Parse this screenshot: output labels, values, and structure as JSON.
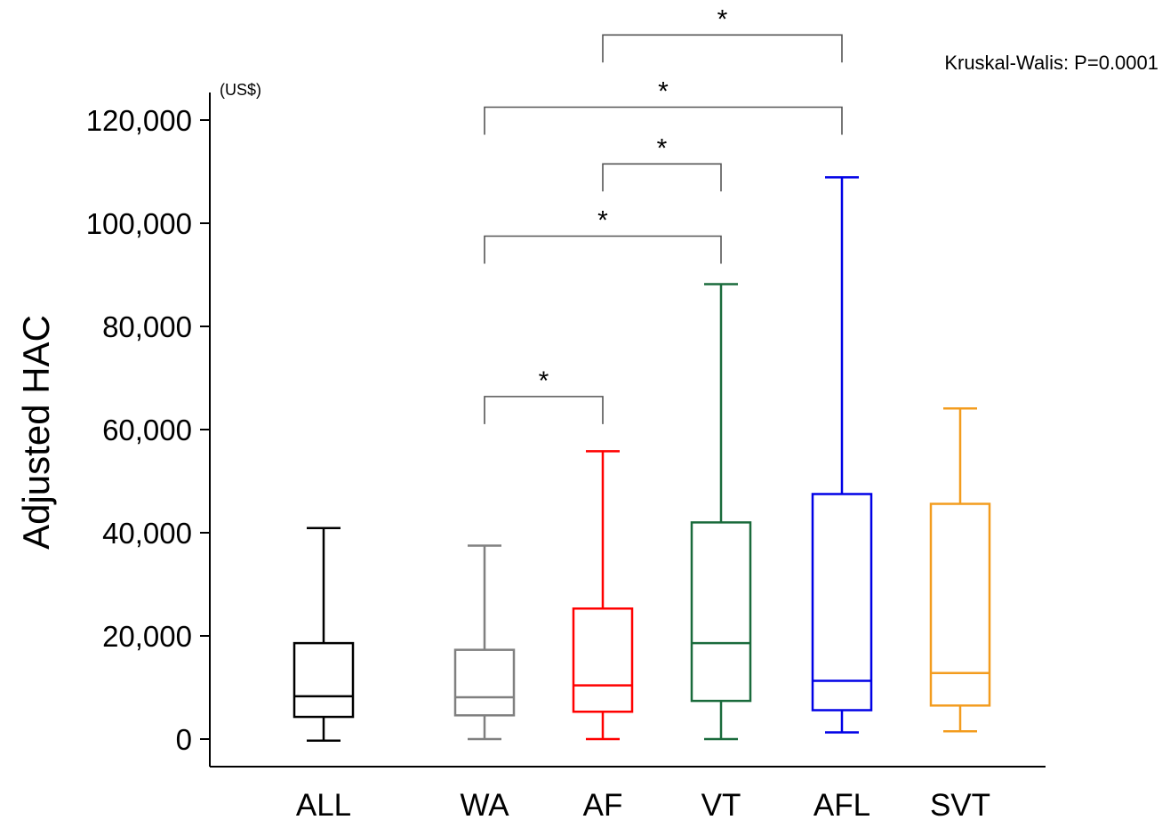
{
  "chart_data": {
    "type": "box",
    "ylabel": "Adjusted HAC",
    "unit_label": "(US$)",
    "ylim": [
      0,
      120000
    ],
    "yticks": [
      0,
      20000,
      40000,
      60000,
      80000,
      100000,
      120000
    ],
    "ytick_labels": [
      "0",
      "20,000",
      "40,000",
      "60,000",
      "80,000",
      "100,000",
      "120,000"
    ],
    "grid": false,
    "legend": "none",
    "stat_test": "Kruskal-Walis: P=0.0001",
    "categories": [
      "ALL",
      "WA",
      "AF",
      "VT",
      "AFL",
      "SVT"
    ],
    "boxes": [
      {
        "label": "ALL",
        "color": "#000000",
        "min": -300,
        "q1": 4300,
        "median": 8300,
        "q3": 18600,
        "max": 40900
      },
      {
        "label": "WA",
        "color": "#808080",
        "min": 0,
        "q1": 4600,
        "median": 8100,
        "q3": 17300,
        "max": 37500
      },
      {
        "label": "AF",
        "color": "#ff0000",
        "min": 0,
        "q1": 5300,
        "median": 10400,
        "q3": 25300,
        "max": 55800
      },
      {
        "label": "VT",
        "color": "#1a6b3c",
        "min": 0,
        "q1": 7400,
        "median": 18600,
        "q3": 42000,
        "max": 88200
      },
      {
        "label": "AFL",
        "color": "#0000e6",
        "min": 1300,
        "q1": 5600,
        "median": 11300,
        "q3": 47500,
        "max": 108900
      },
      {
        "label": "SVT",
        "color": "#f39c1e",
        "min": 1500,
        "q1": 6500,
        "median": 12800,
        "q3": 45600,
        "max": 64100
      }
    ],
    "comparisons": [
      {
        "from": "WA",
        "to": "AF",
        "label": "*",
        "level": 66400
      },
      {
        "from": "WA",
        "to": "VT",
        "label": "*",
        "level": 97500
      },
      {
        "from": "AF",
        "to": "VT",
        "label": "*",
        "level": 111500
      },
      {
        "from": "WA",
        "to": "AFL",
        "label": "*",
        "level": 122500
      },
      {
        "from": "AF",
        "to": "AFL",
        "label": "*",
        "level": 136500
      }
    ]
  }
}
